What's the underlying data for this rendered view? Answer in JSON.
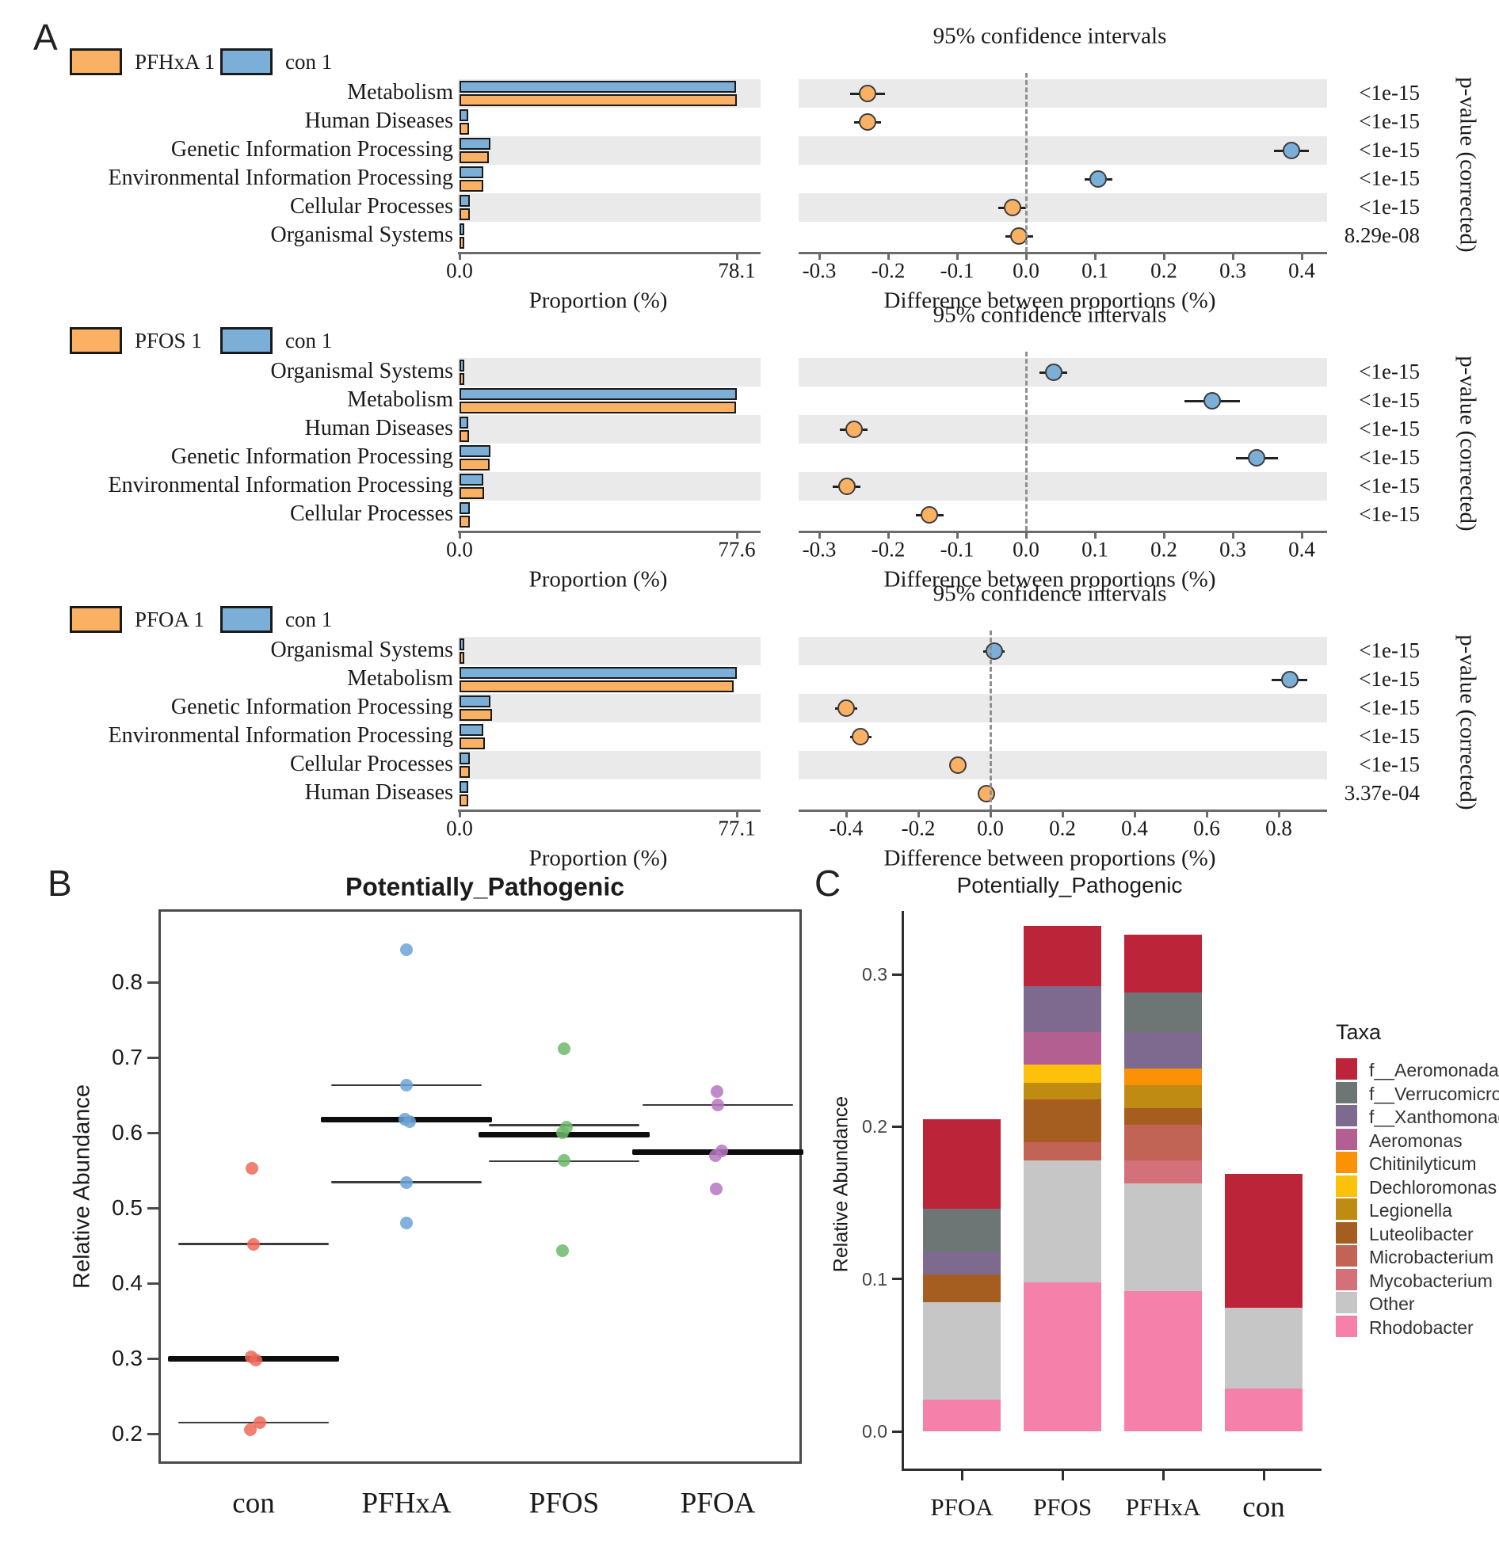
{
  "figure": {
    "panel_a_label": "A",
    "panel_b_label": "B",
    "panel_c_label": "C"
  },
  "colors": {
    "stamp_treatment": "#fab164",
    "stamp_control": "#7bafd7",
    "stamp_stripe": "#eaeaea",
    "stamp_axis": "#6b6b6b",
    "stamp_dashed_zero": "#8f8f8f",
    "bar_outline": "#1a1a1a",
    "dot_outline": "#3c3c3c"
  },
  "chart_data": [
    {
      "type": "bar",
      "id": "stamp-pfhxa",
      "title": "95% confidence intervals",
      "legend": {
        "treatment_label": "PFHxA 1",
        "control_label": "con 1"
      },
      "prop_xlabel": "Proportion (%)",
      "diff_xlabel": "Difference between proportions (%)",
      "right_ylabel": "p-value (corrected)",
      "prop_axis_max": 78.1,
      "prop_ticks": [
        "0.0",
        "78.1"
      ],
      "diff_ticks": [
        -0.3,
        -0.2,
        -0.1,
        0.0,
        0.1,
        0.2,
        0.3,
        0.4
      ],
      "diff_tick_labels": [
        "-0.3",
        "-0.2",
        "-0.1",
        "0.0",
        "0.1",
        "0.2",
        "0.3",
        "0.4"
      ],
      "rows": [
        {
          "label": "Metabolism",
          "control": 77.9,
          "treatment": 78.1,
          "diff": -0.23,
          "ci": 0.025,
          "dot": "treatment",
          "p": "<1e-15"
        },
        {
          "label": "Human Diseases",
          "control": 2.5,
          "treatment": 2.73,
          "diff": -0.23,
          "ci": 0.02,
          "dot": "treatment",
          "p": "<1e-15"
        },
        {
          "label": "Genetic Information Processing",
          "control": 8.7,
          "treatment": 8.32,
          "diff": 0.385,
          "ci": 0.025,
          "dot": "control",
          "p": "<1e-15"
        },
        {
          "label": "Environmental Information Processing",
          "control": 6.75,
          "treatment": 6.65,
          "diff": 0.105,
          "ci": 0.02,
          "dot": "control",
          "p": "<1e-15"
        },
        {
          "label": "Cellular Processes",
          "control": 2.83,
          "treatment": 2.85,
          "diff": -0.02,
          "ci": 0.02,
          "dot": "treatment",
          "p": "<1e-15"
        },
        {
          "label": "Organismal Systems",
          "control": 1.34,
          "treatment": 1.35,
          "diff": -0.01,
          "ci": 0.02,
          "dot": "treatment",
          "p": "8.29e-08"
        }
      ]
    },
    {
      "type": "bar",
      "id": "stamp-pfos",
      "title": "95% confidence intervals",
      "legend": {
        "treatment_label": "PFOS 1",
        "control_label": "con 1"
      },
      "prop_xlabel": "Proportion (%)",
      "diff_xlabel": "Difference between proportions (%)",
      "right_ylabel": "p-value (corrected)",
      "prop_axis_max": 77.6,
      "prop_ticks": [
        "0.0",
        "77.6"
      ],
      "diff_ticks": [
        -0.3,
        -0.2,
        -0.1,
        0.0,
        0.1,
        0.2,
        0.3,
        0.4
      ],
      "diff_tick_labels": [
        "-0.3",
        "-0.2",
        "-0.1",
        "0.0",
        "0.1",
        "0.2",
        "0.3",
        "0.4"
      ],
      "rows": [
        {
          "label": "Organismal Systems",
          "control": 1.38,
          "treatment": 1.34,
          "diff": 0.04,
          "ci": 0.02,
          "dot": "control",
          "p": "<1e-15"
        },
        {
          "label": "Metabolism",
          "control": 77.6,
          "treatment": 77.33,
          "diff": 0.27,
          "ci": 0.04,
          "dot": "control",
          "p": "<1e-15"
        },
        {
          "label": "Human Diseases",
          "control": 2.5,
          "treatment": 2.75,
          "diff": -0.25,
          "ci": 0.02,
          "dot": "treatment",
          "p": "<1e-15"
        },
        {
          "label": "Genetic Information Processing",
          "control": 8.71,
          "treatment": 8.37,
          "diff": 0.335,
          "ci": 0.03,
          "dot": "control",
          "p": "<1e-15"
        },
        {
          "label": "Environmental Information Processing",
          "control": 6.7,
          "treatment": 6.96,
          "diff": -0.26,
          "ci": 0.02,
          "dot": "treatment",
          "p": "<1e-15"
        },
        {
          "label": "Cellular Processes",
          "control": 2.83,
          "treatment": 2.97,
          "diff": -0.14,
          "ci": 0.02,
          "dot": "treatment",
          "p": "<1e-15"
        }
      ]
    },
    {
      "type": "bar",
      "id": "stamp-pfoa",
      "title": "95% confidence intervals",
      "legend": {
        "treatment_label": "PFOA 1",
        "control_label": "con 1"
      },
      "prop_xlabel": "Proportion (%)",
      "diff_xlabel": "Difference between proportions (%)",
      "right_ylabel": "p-value (corrected)",
      "prop_axis_max": 77.1,
      "prop_ticks": [
        "0.0",
        "77.1"
      ],
      "diff_ticks": [
        -0.4,
        -0.2,
        0.0,
        0.2,
        0.4,
        0.6,
        0.8
      ],
      "diff_tick_labels": [
        "-0.4",
        "-0.2",
        "0.0",
        "0.2",
        "0.4",
        "0.6",
        "0.8"
      ],
      "rows": [
        {
          "label": "Organismal Systems",
          "control": 1.35,
          "treatment": 1.34,
          "diff": 0.01,
          "ci": 0.03,
          "dot": "control",
          "p": "<1e-15"
        },
        {
          "label": "Metabolism",
          "control": 77.1,
          "treatment": 76.27,
          "diff": 0.83,
          "ci": 0.05,
          "dot": "control",
          "p": "<1e-15"
        },
        {
          "label": "Genetic Information Processing",
          "control": 8.7,
          "treatment": 9.1,
          "diff": -0.4,
          "ci": 0.03,
          "dot": "treatment",
          "p": "<1e-15"
        },
        {
          "label": "Environmental Information Processing",
          "control": 6.7,
          "treatment": 7.06,
          "diff": -0.36,
          "ci": 0.03,
          "dot": "treatment",
          "p": "<1e-15"
        },
        {
          "label": "Cellular Processes",
          "control": 2.83,
          "treatment": 2.92,
          "diff": -0.09,
          "ci": 0.02,
          "dot": "treatment",
          "p": "<1e-15"
        },
        {
          "label": "Human Diseases",
          "control": 2.5,
          "treatment": 2.51,
          "diff": -0.01,
          "ci": 0.02,
          "dot": "treatment",
          "p": "3.37e-04"
        }
      ]
    },
    {
      "type": "scatter",
      "id": "strip-potentially-pathogenic",
      "title": "Potentially_Pathogenic",
      "ylabel": "Relative Abundance",
      "ylim": [
        0.163,
        0.878
      ],
      "ytick_labels": [
        "0.8",
        "0.7",
        "0.6",
        "0.5",
        "0.4",
        "0.3",
        "0.2"
      ],
      "yticks": [
        0.8,
        0.7,
        0.6,
        0.5,
        0.4,
        0.3,
        0.2
      ],
      "groups": [
        {
          "label": "con",
          "color": "#ee6a5b",
          "points": [
            0.553,
            0.452,
            0.302,
            0.298,
            0.215,
            0.205
          ],
          "jitter": [
            -2,
            0,
            -3,
            3,
            8,
            -4
          ],
          "line_upper": 0.452,
          "line_mid": 0.3,
          "line_lower": 0.215
        },
        {
          "label": "PFHxA",
          "color": "#6ba3d6",
          "points": [
            0.843,
            0.663,
            0.618,
            0.615,
            0.534,
            0.48
          ],
          "jitter": [
            0,
            0,
            -2,
            4,
            0,
            0
          ],
          "line_upper": 0.663,
          "line_mid": 0.617,
          "line_lower": 0.534
        },
        {
          "label": "PFOS",
          "color": "#6cb86a",
          "points": [
            0.712,
            0.607,
            0.6,
            0.563,
            0.443
          ],
          "jitter": [
            0,
            3,
            -2,
            0,
            -2
          ],
          "line_upper": 0.61,
          "line_mid": 0.597,
          "line_lower": 0.562
        },
        {
          "label": "PFOA",
          "color": "#b676c2",
          "points": [
            0.655,
            0.637,
            0.576,
            0.57,
            0.525
          ],
          "jitter": [
            -1,
            0,
            5,
            -3,
            -2
          ],
          "line_upper": 0.637,
          "line_mid": 0.574,
          "line_lower": null
        }
      ]
    },
    {
      "type": "bar",
      "id": "stacked-potentially-pathogenic",
      "stacked": true,
      "title": "Potentially_Pathogenic",
      "ylabel": "Relative Abundance",
      "legend_title": "Taxa",
      "ytick_labels": [
        "0.3",
        "0.2",
        "0.1",
        "0.0"
      ],
      "yticks": [
        0.3,
        0.2,
        0.1,
        0.0
      ],
      "taxa": [
        {
          "name": "f__Aeromonadaceae",
          "color": "#bb2439"
        },
        {
          "name": "f__Verrucomicrobiaceae",
          "color": "#6d7674"
        },
        {
          "name": "f__Xanthomonadaceae",
          "color": "#7d6a8e"
        },
        {
          "name": "Aeromonas",
          "color": "#b45f92"
        },
        {
          "name": "Chitinilyticum",
          "color": "#fb9104"
        },
        {
          "name": "Dechloromonas",
          "color": "#fcc10a"
        },
        {
          "name": "Legionella",
          "color": "#c08b12"
        },
        {
          "name": "Luteolibacter",
          "color": "#a55e1f"
        },
        {
          "name": "Microbacterium",
          "color": "#c16455"
        },
        {
          "name": "Mycobacterium",
          "color": "#d3707a"
        },
        {
          "name": "Other",
          "color": "#c6c6c6"
        },
        {
          "name": "Rhodobacter",
          "color": "#f581ab"
        }
      ],
      "categories": [
        "PFOA",
        "PFOS",
        "PFHxA",
        "con"
      ],
      "stacks": {
        "PFOA": [
          [
            "Rhodobacter",
            0.021
          ],
          [
            "Other",
            0.064
          ],
          [
            "Luteolibacter",
            0.018
          ],
          [
            "f__Xanthomonadaceae",
            0.015
          ],
          [
            "f__Verrucomicrobiaceae",
            0.028
          ],
          [
            "f__Aeromonadaceae",
            0.059
          ]
        ],
        "PFOS": [
          [
            "Rhodobacter",
            0.098
          ],
          [
            "Other",
            0.08
          ],
          [
            "Microbacterium",
            0.012
          ],
          [
            "Luteolibacter",
            0.028
          ],
          [
            "Legionella",
            0.011
          ],
          [
            "Dechloromonas",
            0.012
          ],
          [
            "Aeromonas",
            0.021
          ],
          [
            "f__Xanthomonadaceae",
            0.03
          ],
          [
            "f__Aeromonadaceae",
            0.04
          ]
        ],
        "PFHxA": [
          [
            "Rhodobacter",
            0.092
          ],
          [
            "Other",
            0.071
          ],
          [
            "Mycobacterium",
            0.015
          ],
          [
            "Microbacterium",
            0.023
          ],
          [
            "Luteolibacter",
            0.011
          ],
          [
            "Legionella",
            0.015
          ],
          [
            "Chitinilyticum",
            0.011
          ],
          [
            "f__Xanthomonadaceae",
            0.024
          ],
          [
            "f__Verrucomicrobiaceae",
            0.026
          ],
          [
            "f__Aeromonadaceae",
            0.038
          ]
        ],
        "con": [
          [
            "Rhodobacter",
            0.028
          ],
          [
            "Other",
            0.053
          ],
          [
            "f__Aeromonadaceae",
            0.088
          ]
        ]
      }
    }
  ]
}
